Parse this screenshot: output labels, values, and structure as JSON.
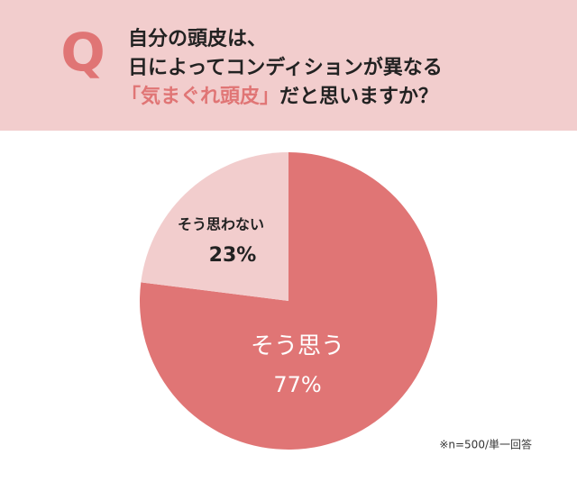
{
  "chart_data": {
    "type": "pie",
    "question_mark": "Q",
    "title_lines": [
      "自分の頭皮は、",
      "日によってコンディションが異なる"
    ],
    "title_highlight": "「気まぐれ頭皮」",
    "title_end": "だと思いますか？",
    "categories": [
      "そう思う",
      "そう思わない"
    ],
    "values": [
      77,
      23
    ],
    "value_labels": [
      "77%",
      "23%"
    ],
    "colors": [
      "#e07575",
      "#f2cdcd"
    ],
    "note": "※n=500/単一回答"
  }
}
